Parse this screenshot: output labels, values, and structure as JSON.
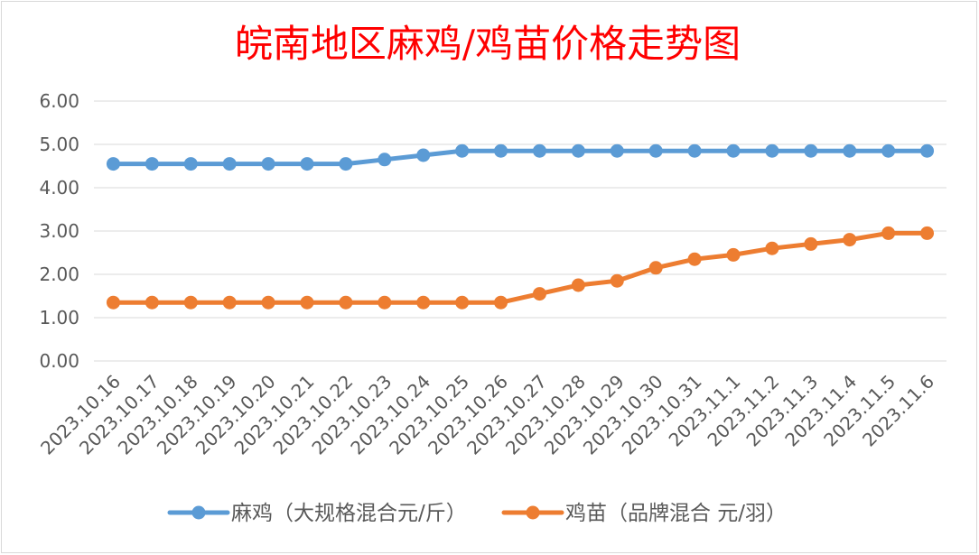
{
  "chart_data": {
    "type": "line",
    "title": "皖南地区麻鸡/鸡苗价格走势图",
    "title_color": "#FF0000",
    "categories": [
      "2023.10.16",
      "2023.10.17",
      "2023.10.18",
      "2023.10.19",
      "2023.10.20",
      "2023.10.21",
      "2023.10.22",
      "2023.10.23",
      "2023.10.24",
      "2023.10.25",
      "2023.10.26",
      "2023.10.27",
      "2023.10.28",
      "2023.10.29",
      "2023.10.30",
      "2023.10.31",
      "2023.11.1",
      "2023.11.2",
      "2023.11.3",
      "2023.11.4",
      "2023.11.5",
      "2023.11.6"
    ],
    "series": [
      {
        "name": "麻鸡（大规格混合元/斤）",
        "color": "#5B9BD5",
        "values": [
          4.55,
          4.55,
          4.55,
          4.55,
          4.55,
          4.55,
          4.55,
          4.65,
          4.75,
          4.85,
          4.85,
          4.85,
          4.85,
          4.85,
          4.85,
          4.85,
          4.85,
          4.85,
          4.85,
          4.85,
          4.85,
          4.85
        ]
      },
      {
        "name": "鸡苗（品牌混合 元/羽）",
        "color": "#ED7D31",
        "values": [
          1.35,
          1.35,
          1.35,
          1.35,
          1.35,
          1.35,
          1.35,
          1.35,
          1.35,
          1.35,
          1.35,
          1.55,
          1.75,
          1.85,
          2.15,
          2.35,
          2.45,
          2.6,
          2.7,
          2.8,
          2.95,
          2.95
        ]
      }
    ],
    "ylim": [
      0,
      6
    ],
    "y_tick_labels": [
      "0.00",
      "1.00",
      "2.00",
      "3.00",
      "4.00",
      "5.00",
      "6.00"
    ],
    "grid": "horizontal",
    "legend": "bottom"
  }
}
